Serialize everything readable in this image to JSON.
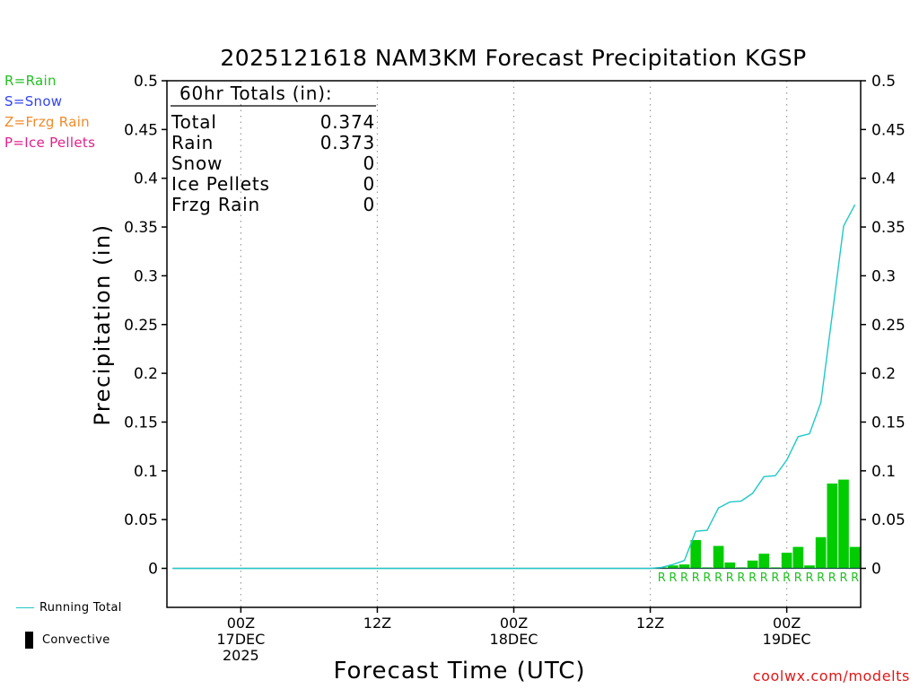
{
  "title": "2025121618 NAM3KM Forecast Precipitation KGSP",
  "credit": "coolwx.com/modelts",
  "legend": [
    {
      "label": "R=Rain",
      "color": "#22c022"
    },
    {
      "label": "S=Snow",
      "color": "#3344ee"
    },
    {
      "label": "Z=Frzg Rain",
      "color": "#f08a2a"
    },
    {
      "label": "P=Ice Pellets",
      "color": "#e0208a"
    }
  ],
  "bottom_legend": {
    "running_total": "Running Total",
    "convective": "Convective"
  },
  "totals": {
    "heading": "60hr Totals (in):",
    "rows": [
      {
        "label": "Total",
        "value": "0.374"
      },
      {
        "label": "Rain",
        "value": "0.373"
      },
      {
        "label": "Snow",
        "value": "0"
      },
      {
        "label": "Ice Pellets",
        "value": "0"
      },
      {
        "label": "Frzg Rain",
        "value": "0"
      }
    ]
  },
  "colors": {
    "bar": "#00cc00",
    "line": "#20c8c8",
    "rain_marker": "#22c022",
    "grid": "#999999"
  },
  "chart_data": {
    "type": "bar",
    "title": "2025121618 NAM3KM Forecast Precipitation KGSP",
    "xlabel": "Forecast Time (UTC)",
    "ylabel": "Precipitation (in)",
    "x_unit": "forecast hour from 2025121618",
    "xlim": [
      -0.5,
      60.5
    ],
    "ylim": [
      -0.04,
      0.5
    ],
    "yticks": [
      0,
      0.05,
      0.1,
      0.15,
      0.2,
      0.25,
      0.3,
      0.35,
      0.4,
      0.45,
      0.5
    ],
    "ytick_labels": [
      "0",
      "0.05",
      "0.1",
      "0.15",
      "0.2",
      "0.25",
      "0.3",
      "0.35",
      "0.4",
      "0.45",
      "0.5"
    ],
    "xticks": [
      {
        "hour": 6,
        "lines": [
          "00Z",
          "17DEC",
          "2025"
        ]
      },
      {
        "hour": 18,
        "lines": [
          "12Z"
        ]
      },
      {
        "hour": 30,
        "lines": [
          "00Z",
          "18DEC"
        ]
      },
      {
        "hour": 42,
        "lines": [
          "12Z"
        ]
      },
      {
        "hour": 54,
        "lines": [
          "00Z",
          "19DEC"
        ]
      }
    ],
    "series": [
      {
        "name": "Hourly Precipitation",
        "kind": "bar",
        "x": [
          43,
          44,
          45,
          46,
          47,
          48,
          49,
          50,
          51,
          52,
          53,
          54,
          55,
          56,
          57,
          58,
          59,
          60
        ],
        "values": [
          0.001,
          0.003,
          0.004,
          0.029,
          0.001,
          0.023,
          0.006,
          0.001,
          0.008,
          0.015,
          0.001,
          0.016,
          0.022,
          0.003,
          0.032,
          0.087,
          0.091,
          0.022
        ]
      },
      {
        "name": "Running Total",
        "kind": "line",
        "x": [
          0,
          42,
          43,
          44,
          45,
          46,
          47,
          48,
          49,
          50,
          51,
          52,
          53,
          54,
          55,
          56,
          57,
          58,
          59,
          60
        ],
        "values": [
          0,
          0,
          0.001,
          0.004,
          0.008,
          0.038,
          0.039,
          0.062,
          0.068,
          0.069,
          0.077,
          0.094,
          0.095,
          0.111,
          0.135,
          0.138,
          0.17,
          0.26,
          0.351,
          0.373
        ]
      }
    ],
    "precip_type_markers": {
      "symbol": "R",
      "x": [
        43,
        44,
        45,
        46,
        47,
        48,
        49,
        50,
        51,
        52,
        53,
        54,
        55,
        56,
        57,
        58,
        59,
        60
      ]
    }
  }
}
